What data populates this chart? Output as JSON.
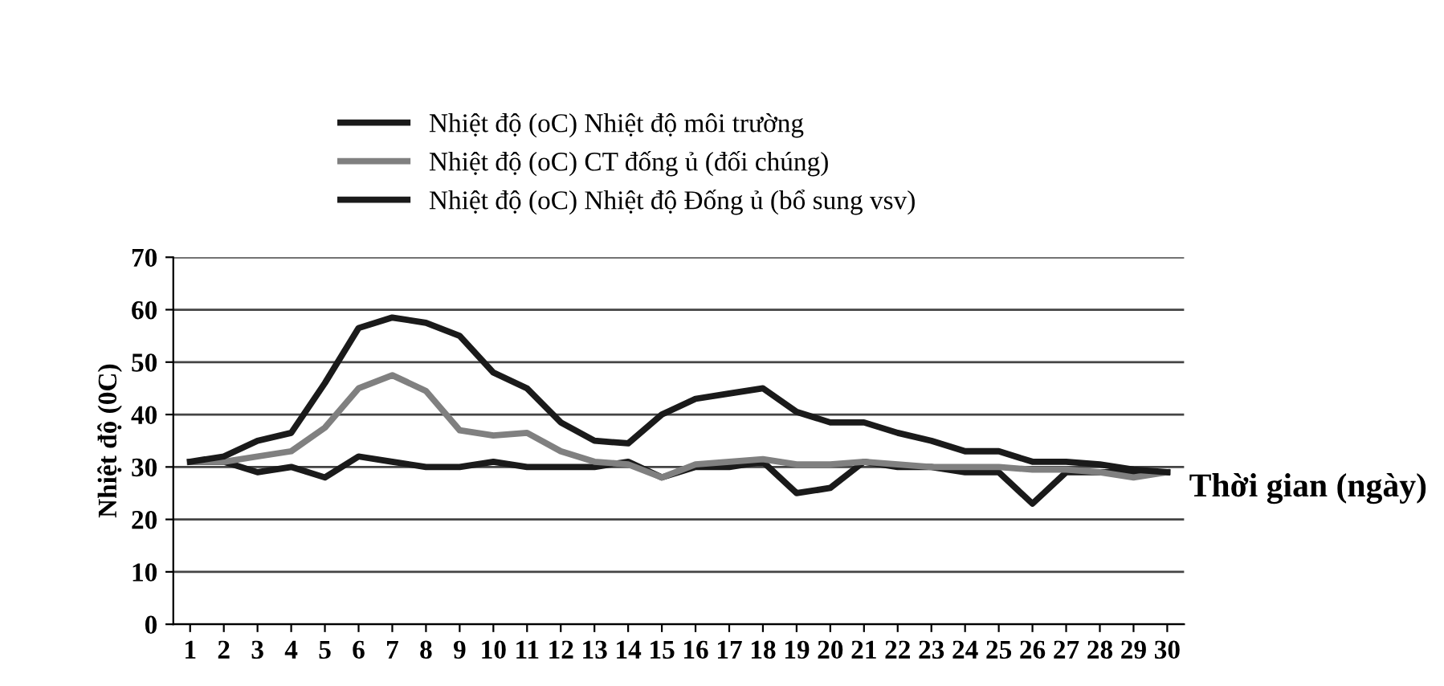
{
  "chart_data": {
    "type": "line",
    "ylabel": "Nhiệt độ (0C)",
    "xlabel": "Thời gian (ngày)",
    "categories": [
      "1",
      "2",
      "3",
      "4",
      "5",
      "6",
      "7",
      "8",
      "9",
      "10",
      "11",
      "12",
      "13",
      "14",
      "15",
      "16",
      "17",
      "18",
      "19",
      "20",
      "21",
      "22",
      "23",
      "24",
      "25",
      "26",
      "27",
      "28",
      "29",
      "30"
    ],
    "series": [
      {
        "name": "Nhiệt độ (oC) Nhiệt độ môi trường",
        "color": "#1a1a1a",
        "values": [
          31,
          31,
          29,
          30,
          28,
          32,
          31,
          30,
          30,
          31,
          30,
          30,
          30,
          31,
          28,
          30,
          30,
          31,
          25,
          26,
          31,
          30,
          30,
          29,
          29,
          23,
          29,
          29,
          29,
          29
        ]
      },
      {
        "name": "Nhiệt độ (oC) CT đống ủ (đối chúng)",
        "color": "#808080",
        "values": [
          31,
          31,
          32,
          33,
          37.5,
          45,
          47.5,
          44.5,
          37,
          36,
          36.5,
          33,
          31,
          30.5,
          28,
          30.5,
          31,
          31.5,
          30.5,
          30.5,
          31,
          30.5,
          30,
          30,
          30,
          29.5,
          29.5,
          29,
          28,
          29
        ]
      },
      {
        "name": "Nhiệt độ (oC) Nhiệt độ Đống ủ (bổ sung vsv)",
        "color": "#1a1a1a",
        "values": [
          31,
          32,
          35,
          36.5,
          46,
          56.5,
          58.5,
          57.5,
          55,
          48,
          45,
          38.5,
          35,
          34.5,
          40,
          43,
          44,
          45,
          40.5,
          38.5,
          38.5,
          36.5,
          35,
          33,
          33,
          31,
          31,
          30.5,
          29.5,
          29
        ]
      }
    ],
    "ylim": [
      0,
      70
    ],
    "yticks": [
      0,
      10,
      20,
      30,
      40,
      50,
      60,
      70
    ],
    "grid": "y",
    "legend": "top",
    "marker": "none",
    "line_style": "solid"
  }
}
